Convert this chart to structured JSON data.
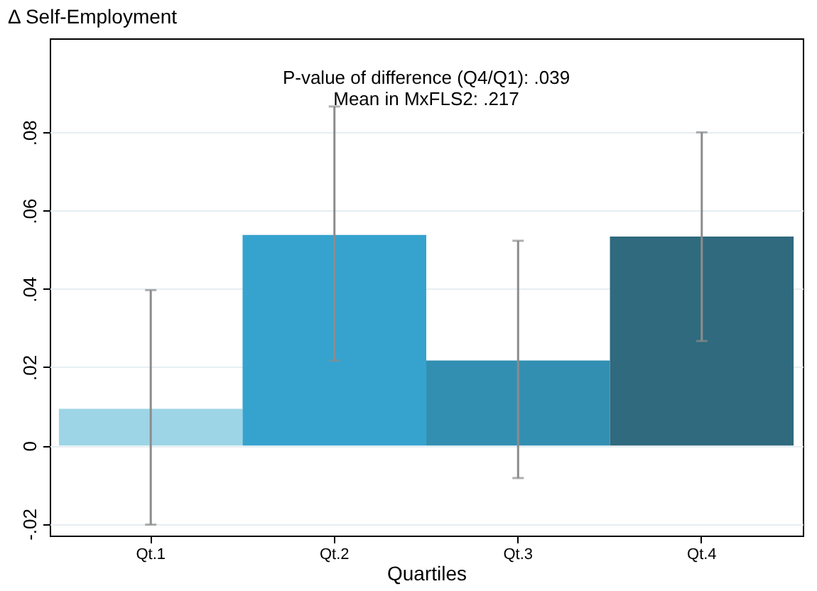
{
  "chart_data": {
    "type": "bar",
    "ylabel": "Δ Self-Employment",
    "xlabel": "Quartiles",
    "categories": [
      "Qt.1",
      "Qt.2",
      "Qt.3",
      "Qt.4"
    ],
    "values": [
      0.0094,
      0.0538,
      0.0217,
      0.0534
    ],
    "colors": [
      "#9dd5e6",
      "#36a3cf",
      "#338fb2",
      "#2f6a7e"
    ],
    "errors": [
      [
        -0.0202,
        0.0397
      ],
      [
        0.0217,
        0.0866
      ],
      [
        -0.0083,
        0.0523
      ],
      [
        0.0267,
        0.08
      ]
    ],
    "ylim": [
      -0.023,
      0.104
    ],
    "yticks": [
      {
        "value": -0.02,
        "label": "-.02"
      },
      {
        "value": 0,
        "label": "0"
      },
      {
        "value": 0.02,
        "label": ".02"
      },
      {
        "value": 0.04,
        "label": ".04"
      },
      {
        "value": 0.06,
        "label": ".06"
      },
      {
        "value": 0.08,
        "label": ".08"
      }
    ],
    "grid": "y",
    "annotations": [
      "P-value of difference (Q4/Q1): .039",
      "Mean in MxFLS2: .217"
    ]
  }
}
